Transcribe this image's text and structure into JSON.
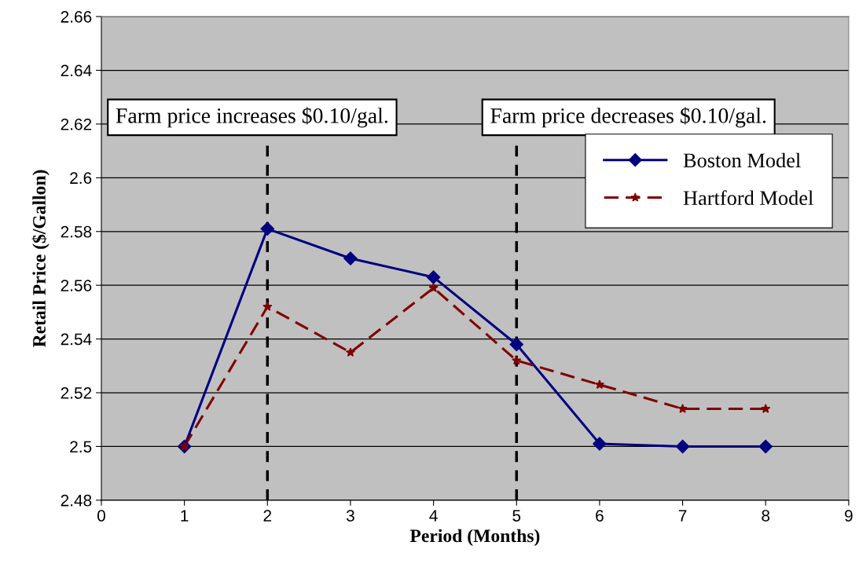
{
  "chart_data": {
    "type": "line",
    "xlabel": "Period (Months)",
    "ylabel": "Retail Price ($/Gallon)",
    "x": [
      1,
      2,
      3,
      4,
      5,
      6,
      7,
      8
    ],
    "series": [
      {
        "name": "Boston Model",
        "color": "#000080",
        "marker": "diamond",
        "line_style": "solid",
        "values": [
          2.5,
          2.581,
          2.57,
          2.563,
          2.538,
          2.501,
          2.5,
          2.5
        ]
      },
      {
        "name": "Hartford Model",
        "color": "#800000",
        "marker": "star",
        "line_style": "dashed",
        "values": [
          2.5,
          2.552,
          2.535,
          2.559,
          2.532,
          2.523,
          2.514,
          2.514
        ]
      }
    ],
    "xlim": [
      0,
      9
    ],
    "xticks": [
      0,
      1,
      2,
      3,
      4,
      5,
      6,
      7,
      8,
      9
    ],
    "ylim": [
      2.48,
      2.66
    ],
    "yticks": [
      2.48,
      2.5,
      2.52,
      2.54,
      2.56,
      2.58,
      2.6,
      2.62,
      2.64,
      2.66
    ],
    "ref_lines": [
      {
        "axis": "x",
        "value": 2,
        "label": "Farm price increases $0.10/gal.",
        "color": "#000000",
        "line_style": "dashed"
      },
      {
        "axis": "x",
        "value": 5,
        "label": "Farm price decreases $0.10/gal.",
        "color": "#000000",
        "line_style": "dashed"
      }
    ],
    "grid": "y",
    "legend": "right"
  }
}
